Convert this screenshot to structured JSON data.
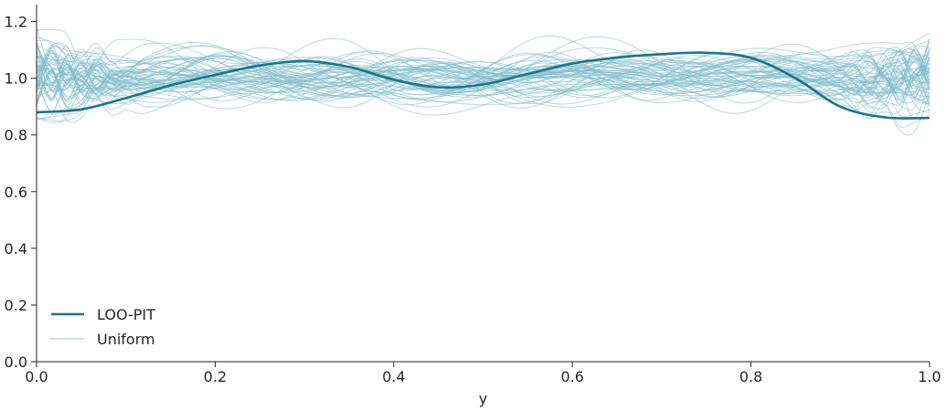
{
  "chart_data": {
    "type": "line",
    "title": "",
    "xlabel": "y",
    "ylabel": "",
    "xlim": [
      0.0,
      1.0
    ],
    "ylim": [
      0.0,
      1.26
    ],
    "xticks": [
      "0.0",
      "0.2",
      "0.4",
      "0.6",
      "0.8",
      "1.0"
    ],
    "yticks": [
      "0.0",
      "0.2",
      "0.4",
      "0.6",
      "0.8",
      "1.0",
      "1.2"
    ],
    "grid": false,
    "legend_position": "lower-left",
    "colors": {
      "loo_pit": "#1a7589",
      "uniform": "#7fbccb",
      "axis": "#262626"
    },
    "legend": [
      {
        "label": "LOO-PIT",
        "style": "thick"
      },
      {
        "label": "Uniform",
        "style": "thin"
      }
    ],
    "series": [
      {
        "name": "LOO-PIT",
        "x": [
          0.0,
          0.05,
          0.1,
          0.15,
          0.2,
          0.25,
          0.3,
          0.35,
          0.4,
          0.45,
          0.5,
          0.55,
          0.6,
          0.65,
          0.7,
          0.75,
          0.8,
          0.85,
          0.9,
          0.95,
          1.0
        ],
        "y": [
          0.88,
          0.89,
          0.93,
          0.975,
          1.012,
          1.045,
          1.06,
          1.04,
          0.995,
          0.968,
          0.978,
          1.015,
          1.052,
          1.073,
          1.085,
          1.09,
          1.072,
          1.0,
          0.9,
          0.862,
          0.86
        ]
      },
      {
        "name": "Uniform",
        "sample_count": 60,
        "x_range": [
          0.0,
          1.0
        ],
        "y_center": 1.0,
        "y_envelope": [
          0.8,
          1.24
        ]
      }
    ]
  }
}
